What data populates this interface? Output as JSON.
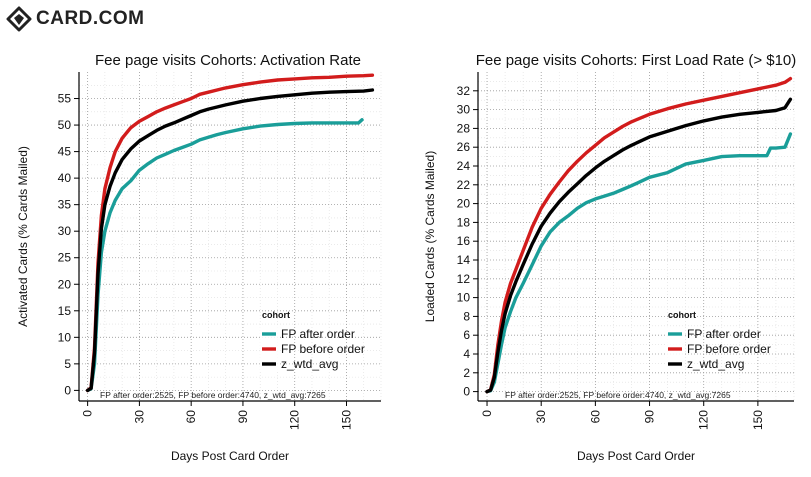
{
  "brand": {
    "name": "CARD.COM",
    "icon": "card-com-logo-icon"
  },
  "chart_data": [
    {
      "type": "line",
      "title": "Fee page visits Cohorts: Activation Rate",
      "xlabel": "Days Post Card Order",
      "ylabel": "Activated Cards (% Cards Mailed)",
      "xlim": [
        -5,
        170
      ],
      "ylim": [
        -2,
        60
      ],
      "x_ticks": [
        0,
        30,
        60,
        90,
        120,
        150
      ],
      "y_ticks": [
        0,
        5,
        10,
        15,
        20,
        25,
        30,
        35,
        40,
        45,
        50,
        55
      ],
      "grid": true,
      "legend": {
        "title": "cohort",
        "position": "bottom-right"
      },
      "annotation": "FP after order:2525, FP before order:4740, z_wtd_avg:7265",
      "series": [
        {
          "name": "FP after order",
          "color": "#1a9e99",
          "x": [
            0,
            2,
            4,
            6,
            8,
            10,
            13,
            16,
            20,
            25,
            30,
            35,
            40,
            45,
            50,
            55,
            60,
            65,
            70,
            75,
            80,
            90,
            100,
            110,
            120,
            130,
            140,
            150,
            157,
            159
          ],
          "y": [
            0,
            0.3,
            5,
            18,
            26,
            30,
            33.5,
            35.8,
            38,
            39.5,
            41.5,
            42.7,
            43.8,
            44.5,
            45.2,
            45.8,
            46.4,
            47.2,
            47.7,
            48.2,
            48.6,
            49.3,
            49.8,
            50.1,
            50.3,
            50.4,
            50.4,
            50.4,
            50.4,
            51
          ]
        },
        {
          "name": "FP before order",
          "color": "#d21c1c",
          "x": [
            0,
            2,
            4,
            6,
            8,
            10,
            13,
            16,
            20,
            25,
            30,
            35,
            40,
            45,
            50,
            55,
            60,
            65,
            70,
            75,
            80,
            90,
            100,
            110,
            120,
            130,
            140,
            150,
            160,
            165
          ],
          "y": [
            0,
            0.5,
            8,
            24,
            33,
            38,
            42,
            45,
            47.5,
            49.5,
            50.7,
            51.6,
            52.5,
            53.2,
            53.8,
            54.4,
            55,
            55.8,
            56.2,
            56.6,
            57,
            57.6,
            58.1,
            58.5,
            58.7,
            58.9,
            59,
            59.2,
            59.3,
            59.4
          ]
        },
        {
          "name": "z_wtd_avg",
          "color": "#000000",
          "x": [
            0,
            2,
            4,
            6,
            8,
            10,
            13,
            16,
            20,
            25,
            30,
            35,
            40,
            45,
            50,
            55,
            60,
            65,
            70,
            75,
            80,
            90,
            100,
            110,
            120,
            130,
            140,
            150,
            160,
            165
          ],
          "y": [
            0,
            0.4,
            7,
            22,
            30.5,
            35,
            38.5,
            41,
            43.5,
            45.5,
            47,
            48,
            49,
            49.8,
            50.4,
            51.1,
            51.8,
            52.5,
            53,
            53.4,
            53.8,
            54.5,
            55,
            55.4,
            55.7,
            56,
            56.2,
            56.3,
            56.4,
            56.6
          ]
        }
      ]
    },
    {
      "type": "line",
      "title": "Fee page visits Cohorts: First Load Rate (> $10)",
      "xlabel": "Days Post Card Order",
      "ylabel": "Loaded Cards (% Cards Mailed)",
      "xlim": [
        -5,
        170
      ],
      "ylim": [
        -1,
        34
      ],
      "x_ticks": [
        0,
        30,
        60,
        90,
        120,
        150
      ],
      "y_ticks": [
        0,
        2,
        4,
        6,
        8,
        10,
        12,
        14,
        16,
        18,
        20,
        22,
        24,
        26,
        28,
        30,
        32
      ],
      "grid": true,
      "legend": {
        "title": "cohort",
        "position": "bottom-right"
      },
      "annotation": "FP after order:2525, FP before order:4740, z_wtd_avg:7265",
      "series": [
        {
          "name": "FP after order",
          "color": "#1a9e99",
          "x": [
            0,
            2,
            4,
            6,
            8,
            10,
            13,
            16,
            20,
            25,
            30,
            35,
            40,
            45,
            50,
            55,
            60,
            65,
            70,
            75,
            80,
            90,
            100,
            110,
            120,
            130,
            140,
            150,
            155,
            157,
            160,
            165,
            168
          ],
          "y": [
            0,
            0.1,
            1,
            3,
            5,
            6.8,
            8.5,
            10,
            11.5,
            13.5,
            15.5,
            17,
            18,
            18.7,
            19.5,
            20.1,
            20.5,
            20.8,
            21.1,
            21.5,
            21.9,
            22.8,
            23.3,
            24.2,
            24.6,
            25,
            25.1,
            25.1,
            25.1,
            25.9,
            25.9,
            26,
            27.4
          ]
        },
        {
          "name": "FP before order",
          "color": "#d21c1c",
          "x": [
            0,
            2,
            4,
            6,
            8,
            10,
            13,
            16,
            20,
            25,
            30,
            35,
            40,
            45,
            50,
            55,
            60,
            65,
            70,
            75,
            80,
            90,
            100,
            110,
            120,
            130,
            140,
            150,
            160,
            165,
            168
          ],
          "y": [
            0,
            0.2,
            1.8,
            5,
            7.5,
            9.5,
            11.5,
            13,
            15,
            17.5,
            19.5,
            21,
            22.3,
            23.5,
            24.5,
            25.4,
            26.2,
            27,
            27.6,
            28.2,
            28.7,
            29.5,
            30.1,
            30.6,
            31,
            31.4,
            31.8,
            32.2,
            32.6,
            32.9,
            33.3
          ]
        },
        {
          "name": "z_wtd_avg",
          "color": "#000000",
          "x": [
            0,
            2,
            4,
            6,
            8,
            10,
            13,
            16,
            20,
            25,
            30,
            35,
            40,
            45,
            50,
            55,
            60,
            65,
            70,
            75,
            80,
            90,
            100,
            110,
            120,
            130,
            140,
            150,
            160,
            165,
            168
          ],
          "y": [
            0,
            0.15,
            1.5,
            4.2,
            6.5,
            8.3,
            10.2,
            11.7,
            13.5,
            15.7,
            17.6,
            19,
            20.2,
            21.2,
            22.1,
            23,
            23.8,
            24.5,
            25.1,
            25.7,
            26.2,
            27.1,
            27.7,
            28.3,
            28.8,
            29.2,
            29.5,
            29.7,
            29.9,
            30.2,
            31.1
          ]
        }
      ]
    }
  ]
}
